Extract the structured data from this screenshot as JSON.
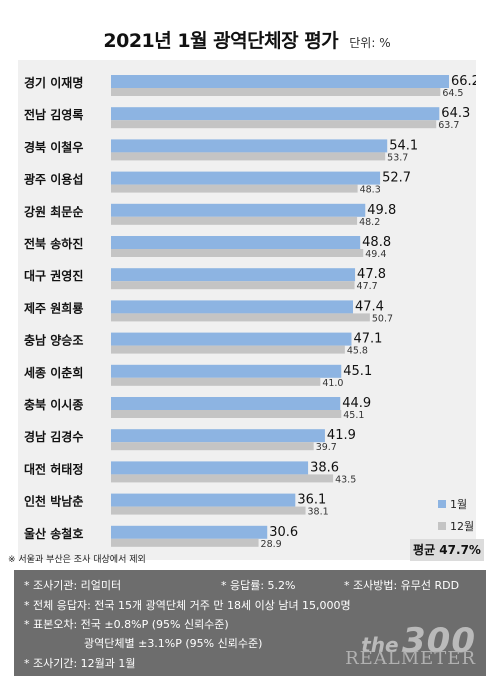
{
  "chart_data": {
    "type": "bar",
    "orientation": "horizontal",
    "title": "2021년 1월 광역단체장 평가",
    "unit": "단위: %",
    "categories": [
      "경기 이재명",
      "전남 김영록",
      "경북 이철우",
      "광주 이용섭",
      "강원 최문순",
      "전북 송하진",
      "대구 권영진",
      "제주 원희룡",
      "충남 양승조",
      "세종 이춘희",
      "충북 이시종",
      "경남 김경수",
      "대전 허태정",
      "인천 박남춘",
      "울산 송철호"
    ],
    "series": [
      {
        "name": "1월",
        "color": "#8db4e2",
        "values": [
          66.2,
          64.3,
          54.1,
          52.7,
          49.8,
          48.8,
          47.8,
          47.4,
          47.1,
          45.1,
          44.9,
          41.9,
          38.6,
          36.1,
          30.6
        ]
      },
      {
        "name": "12월",
        "color": "#c4c4c4",
        "values": [
          64.5,
          63.7,
          53.7,
          48.3,
          48.2,
          49.4,
          47.7,
          50.7,
          45.8,
          41.0,
          45.1,
          39.7,
          43.5,
          38.1,
          28.9
        ]
      }
    ],
    "xlim": [
      0,
      66.2
    ],
    "legend_position": "bottom-right",
    "grid": false,
    "average_label": "평균 47.7%"
  },
  "note": "※ 서울과 부산은 조사 대상에서 제외",
  "info": {
    "line1": "* 조사기관: 리얼미터",
    "line1b": "* 응답률: 5.2%",
    "line1c": "* 조사방법: 유무선 RDD",
    "line2": "* 전체 응답자: 전국 15개 광역단체 거주 만 18세 이상 남녀 15,000명",
    "line3": "* 표본오차: 전국 ±0.8%P (95% 신뢰수준)",
    "line4": "광역단체별 ±3.1%P (95% 신뢰수준)",
    "line5": "* 조사기간: 12월과 1월"
  },
  "watermark": {
    "the": "the",
    "num": "300",
    "brand": "REALMETER"
  },
  "colors": {
    "series_1": "#8db4e2",
    "series_12": "#c4c4c4",
    "panel": "#f0f0f0",
    "info_panel": "#6d6d6d"
  }
}
